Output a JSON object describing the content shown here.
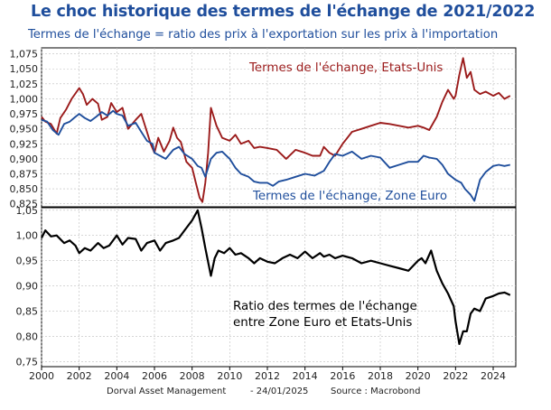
{
  "title": "Le choc historique des termes de l'échange de 2021/2022",
  "subtitle": "Termes de l'échange = ratio des prix à l'exportation sur les prix à l'importation",
  "footer": {
    "author": "Dorval Asset Management",
    "date": "- 24/01/2025",
    "source": "Source : Macrobond"
  },
  "chart_data": [
    {
      "type": "line",
      "title": "",
      "xlabel": "",
      "ylabel": "",
      "xlim": [
        2000,
        2025.2
      ],
      "ylim": [
        0.82,
        1.085
      ],
      "yticks": [
        "1,075",
        "1,050",
        "1,025",
        "1,000",
        "0,975",
        "0,950",
        "0,925",
        "0,900",
        "0,875",
        "0,850",
        "0,825"
      ],
      "ytick_values": [
        1.075,
        1.05,
        1.025,
        1.0,
        0.975,
        0.95,
        0.925,
        0.9,
        0.875,
        0.85,
        0.825
      ],
      "grid": true,
      "series": [
        {
          "name": "Termes de l'échange, Etats-Unis",
          "color": "#9b1b1b",
          "x": [
            2000.0,
            2000.2,
            2000.5,
            2000.8,
            2001.0,
            2001.3,
            2001.6,
            2002.0,
            2002.2,
            2002.4,
            2002.7,
            2003.0,
            2003.2,
            2003.5,
            2003.7,
            2004.0,
            2004.3,
            2004.6,
            2005.0,
            2005.3,
            2005.6,
            2005.8,
            2006.0,
            2006.2,
            2006.5,
            2006.8,
            2007.0,
            2007.2,
            2007.4,
            2007.7,
            2008.0,
            2008.2,
            2008.4,
            2008.55,
            2008.7,
            2008.85,
            2009.0,
            2009.3,
            2009.6,
            2010.0,
            2010.3,
            2010.6,
            2011.0,
            2011.3,
            2011.6,
            2012.0,
            2012.5,
            2013.0,
            2013.5,
            2014.0,
            2014.4,
            2014.8,
            2015.0,
            2015.3,
            2015.6,
            2016.0,
            2016.5,
            2017.0,
            2017.5,
            2018.0,
            2018.5,
            2019.0,
            2019.5,
            2020.0,
            2020.3,
            2020.6,
            2021.0,
            2021.3,
            2021.6,
            2021.9,
            2022.0,
            2022.2,
            2022.4,
            2022.6,
            2022.8,
            2023.0,
            2023.3,
            2023.6,
            2024.0,
            2024.3,
            2024.6,
            2024.9
          ],
          "values": [
            0.97,
            0.962,
            0.958,
            0.942,
            0.968,
            0.982,
            1.0,
            1.018,
            1.008,
            0.99,
            1.0,
            0.992,
            0.965,
            0.97,
            0.993,
            0.978,
            0.985,
            0.95,
            0.965,
            0.975,
            0.945,
            0.925,
            0.91,
            0.935,
            0.912,
            0.93,
            0.952,
            0.935,
            0.928,
            0.895,
            0.885,
            0.86,
            0.835,
            0.828,
            0.86,
            0.91,
            0.985,
            0.955,
            0.935,
            0.93,
            0.94,
            0.925,
            0.93,
            0.918,
            0.92,
            0.918,
            0.915,
            0.9,
            0.915,
            0.91,
            0.905,
            0.905,
            0.92,
            0.91,
            0.905,
            0.925,
            0.945,
            0.95,
            0.955,
            0.96,
            0.958,
            0.955,
            0.952,
            0.955,
            0.952,
            0.948,
            0.97,
            0.995,
            1.015,
            1.0,
            1.005,
            1.04,
            1.068,
            1.035,
            1.045,
            1.015,
            1.008,
            1.012,
            1.005,
            1.01,
            1.0,
            1.005
          ]
        },
        {
          "name": "Termes de l'échange, Zone Euro",
          "color": "#1f4e9c",
          "x": [
            2000.0,
            2000.3,
            2000.6,
            2000.9,
            2001.2,
            2001.5,
            2001.8,
            2002.0,
            2002.3,
            2002.6,
            2002.9,
            2003.2,
            2003.5,
            2003.8,
            2004.0,
            2004.3,
            2004.6,
            2005.0,
            2005.3,
            2005.6,
            2005.9,
            2006.0,
            2006.3,
            2006.6,
            2007.0,
            2007.3,
            2007.6,
            2008.0,
            2008.3,
            2008.5,
            2008.7,
            2009.0,
            2009.3,
            2009.6,
            2010.0,
            2010.3,
            2010.6,
            2011.0,
            2011.3,
            2011.6,
            2012.0,
            2012.3,
            2012.6,
            2013.0,
            2013.5,
            2014.0,
            2014.5,
            2015.0,
            2015.3,
            2015.6,
            2016.0,
            2016.5,
            2017.0,
            2017.5,
            2018.0,
            2018.5,
            2019.0,
            2019.5,
            2020.0,
            2020.3,
            2020.6,
            2021.0,
            2021.3,
            2021.6,
            2022.0,
            2022.3,
            2022.5,
            2022.8,
            2023.0,
            2023.3,
            2023.6,
            2024.0,
            2024.3,
            2024.6,
            2024.9
          ],
          "values": [
            0.965,
            0.962,
            0.948,
            0.94,
            0.958,
            0.962,
            0.97,
            0.975,
            0.968,
            0.963,
            0.97,
            0.978,
            0.972,
            0.98,
            0.975,
            0.972,
            0.955,
            0.96,
            0.945,
            0.93,
            0.925,
            0.91,
            0.905,
            0.9,
            0.915,
            0.92,
            0.908,
            0.9,
            0.888,
            0.885,
            0.87,
            0.9,
            0.91,
            0.912,
            0.9,
            0.885,
            0.875,
            0.87,
            0.862,
            0.86,
            0.86,
            0.855,
            0.862,
            0.865,
            0.87,
            0.875,
            0.872,
            0.88,
            0.895,
            0.908,
            0.905,
            0.912,
            0.9,
            0.905,
            0.902,
            0.885,
            0.89,
            0.895,
            0.895,
            0.905,
            0.902,
            0.9,
            0.89,
            0.875,
            0.865,
            0.86,
            0.85,
            0.84,
            0.83,
            0.865,
            0.878,
            0.888,
            0.89,
            0.888,
            0.89
          ]
        }
      ],
      "annotations": [
        "Termes de l'échange, Etats-Unis",
        "Termes de l'échange, Zone Euro"
      ]
    },
    {
      "type": "line",
      "title": "",
      "xlabel": "",
      "ylabel": "",
      "xlim": [
        2000,
        2025.2
      ],
      "ylim": [
        0.74,
        1.055
      ],
      "yticks": [
        "1,05",
        "1,00",
        "0,95",
        "0,90",
        "0,85",
        "0,80",
        "0,75"
      ],
      "ytick_values": [
        1.05,
        1.0,
        0.95,
        0.9,
        0.85,
        0.8,
        0.75
      ],
      "xticks": [
        "2000",
        "2002",
        "2004",
        "2006",
        "2008",
        "2010",
        "2012",
        "2014",
        "2016",
        "2018",
        "2020",
        "2022",
        "2024"
      ],
      "xtick_values": [
        2000,
        2002,
        2004,
        2006,
        2008,
        2010,
        2012,
        2014,
        2016,
        2018,
        2020,
        2022,
        2024
      ],
      "grid": true,
      "series": [
        {
          "name": "Ratio des termes de l'échange entre Zone Euro et Etats-Unis",
          "color": "#000000",
          "x": [
            2000.0,
            2000.2,
            2000.5,
            2000.8,
            2001.2,
            2001.5,
            2001.8,
            2002.0,
            2002.3,
            2002.6,
            2003.0,
            2003.3,
            2003.6,
            2004.0,
            2004.3,
            2004.6,
            2005.0,
            2005.3,
            2005.6,
            2006.0,
            2006.3,
            2006.6,
            2007.0,
            2007.3,
            2007.6,
            2008.0,
            2008.3,
            2008.5,
            2008.7,
            2009.0,
            2009.2,
            2009.4,
            2009.7,
            2010.0,
            2010.3,
            2010.6,
            2011.0,
            2011.3,
            2011.6,
            2012.0,
            2012.4,
            2012.8,
            2013.2,
            2013.6,
            2014.0,
            2014.4,
            2014.8,
            2015.0,
            2015.3,
            2015.6,
            2016.0,
            2016.5,
            2017.0,
            2017.5,
            2018.0,
            2018.5,
            2019.0,
            2019.5,
            2020.0,
            2020.2,
            2020.4,
            2020.7,
            2021.0,
            2021.3,
            2021.6,
            2021.9,
            2022.0,
            2022.2,
            2022.4,
            2022.6,
            2022.8,
            2023.0,
            2023.3,
            2023.6,
            2024.0,
            2024.3,
            2024.6,
            2024.9
          ],
          "values": [
            0.995,
            1.01,
            0.998,
            1.0,
            0.985,
            0.99,
            0.98,
            0.965,
            0.975,
            0.97,
            0.985,
            0.975,
            0.98,
            1.0,
            0.982,
            0.995,
            0.993,
            0.97,
            0.985,
            0.99,
            0.97,
            0.985,
            0.99,
            0.995,
            1.01,
            1.03,
            1.05,
            1.015,
            0.975,
            0.92,
            0.955,
            0.97,
            0.965,
            0.975,
            0.962,
            0.965,
            0.955,
            0.945,
            0.955,
            0.948,
            0.945,
            0.955,
            0.962,
            0.955,
            0.968,
            0.955,
            0.965,
            0.958,
            0.962,
            0.955,
            0.96,
            0.955,
            0.945,
            0.95,
            0.945,
            0.94,
            0.935,
            0.93,
            0.95,
            0.955,
            0.945,
            0.97,
            0.93,
            0.905,
            0.885,
            0.86,
            0.83,
            0.785,
            0.81,
            0.81,
            0.845,
            0.855,
            0.85,
            0.875,
            0.88,
            0.885,
            0.887,
            0.882
          ]
        }
      ],
      "annotations": [
        "Ratio des termes de l'échange",
        "entre Zone Euro et Etats-Unis"
      ]
    }
  ]
}
